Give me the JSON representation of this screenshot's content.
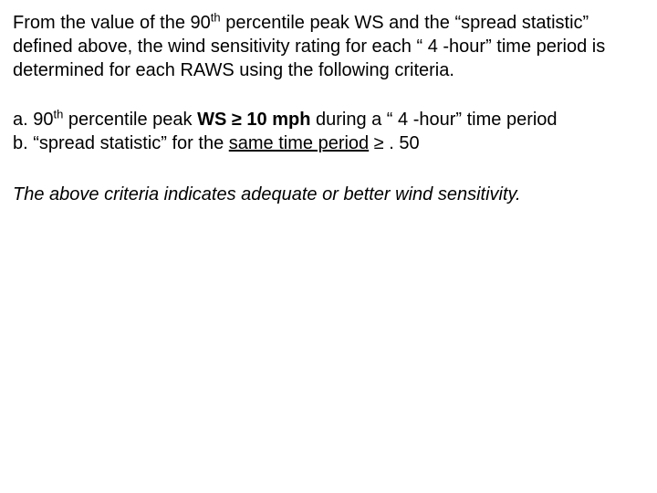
{
  "intro": {
    "pre1": "From the value of the 90",
    "sup1": "th",
    "post1": " percentile peak WS and the “spread statistic” defined above, the wind sensitivity rating for each “ 4 -hour” time period is determined for each RAWS using the following criteria."
  },
  "criteria": {
    "a_pre": "a. 90",
    "a_sup": "th",
    "a_mid1": " percentile peak ",
    "a_bold": "WS ≥ 10 mph",
    "a_mid2": " during a “ 4 -hour” time period",
    "b_pre": "b. “spread statistic” for the ",
    "b_ul": "same time period",
    "b_post": "  ≥ . 50"
  },
  "conclusion": "The above criteria indicates adequate or better wind sensitivity."
}
